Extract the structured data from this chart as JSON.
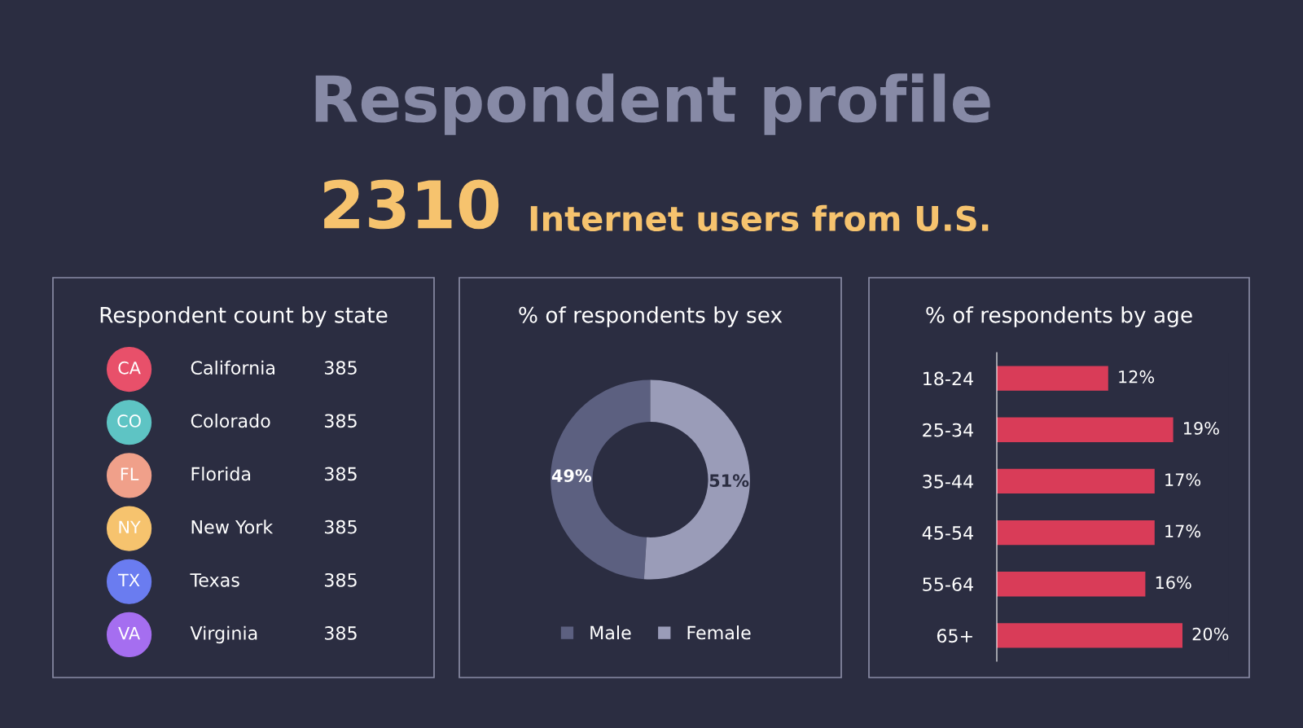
{
  "chart_data": [
    {
      "type": "other",
      "title": "Respondent profile",
      "annotations": [
        "2310",
        "Internet users from U.S."
      ]
    },
    {
      "type": "other",
      "title": "Respondent count by state",
      "categories": [
        "California",
        "Colorado",
        "Florida",
        "New York",
        "Texas",
        "Virginia"
      ],
      "values": [
        385,
        385,
        385,
        385,
        385,
        385
      ],
      "colors": [
        "#e8506a",
        "#5ec4c4",
        "#f0a08a",
        "#f6c36e",
        "#6a7cf0",
        "#a56ef0"
      ],
      "annotations": [
        "CA",
        "CO",
        "FL",
        "NY",
        "TX",
        "VA"
      ],
      "data_labels": true
    },
    {
      "type": "donut",
      "title": "% of respondents by sex",
      "categories": [
        "Male",
        "Female"
      ],
      "values": [
        49,
        51
      ],
      "colors": [
        "#5c6080",
        "#9a9cb8"
      ],
      "value_labels": [
        "49%",
        "51%"
      ],
      "legend": "bottom"
    },
    {
      "type": "bar",
      "orientation": "horizontal",
      "title": "% of respondents by age",
      "categories": [
        "18-24",
        "25-34",
        "35-44",
        "45-54",
        "55-64",
        "65+"
      ],
      "values": [
        12,
        19,
        17,
        17,
        16,
        20
      ],
      "colors": [
        "#d93c58",
        "#d93c58",
        "#d93c58",
        "#d93c58",
        "#d93c58",
        "#d93c58"
      ],
      "value_labels": [
        "12%",
        "19%",
        "17%",
        "17%",
        "16%",
        "20%"
      ]
    }
  ]
}
